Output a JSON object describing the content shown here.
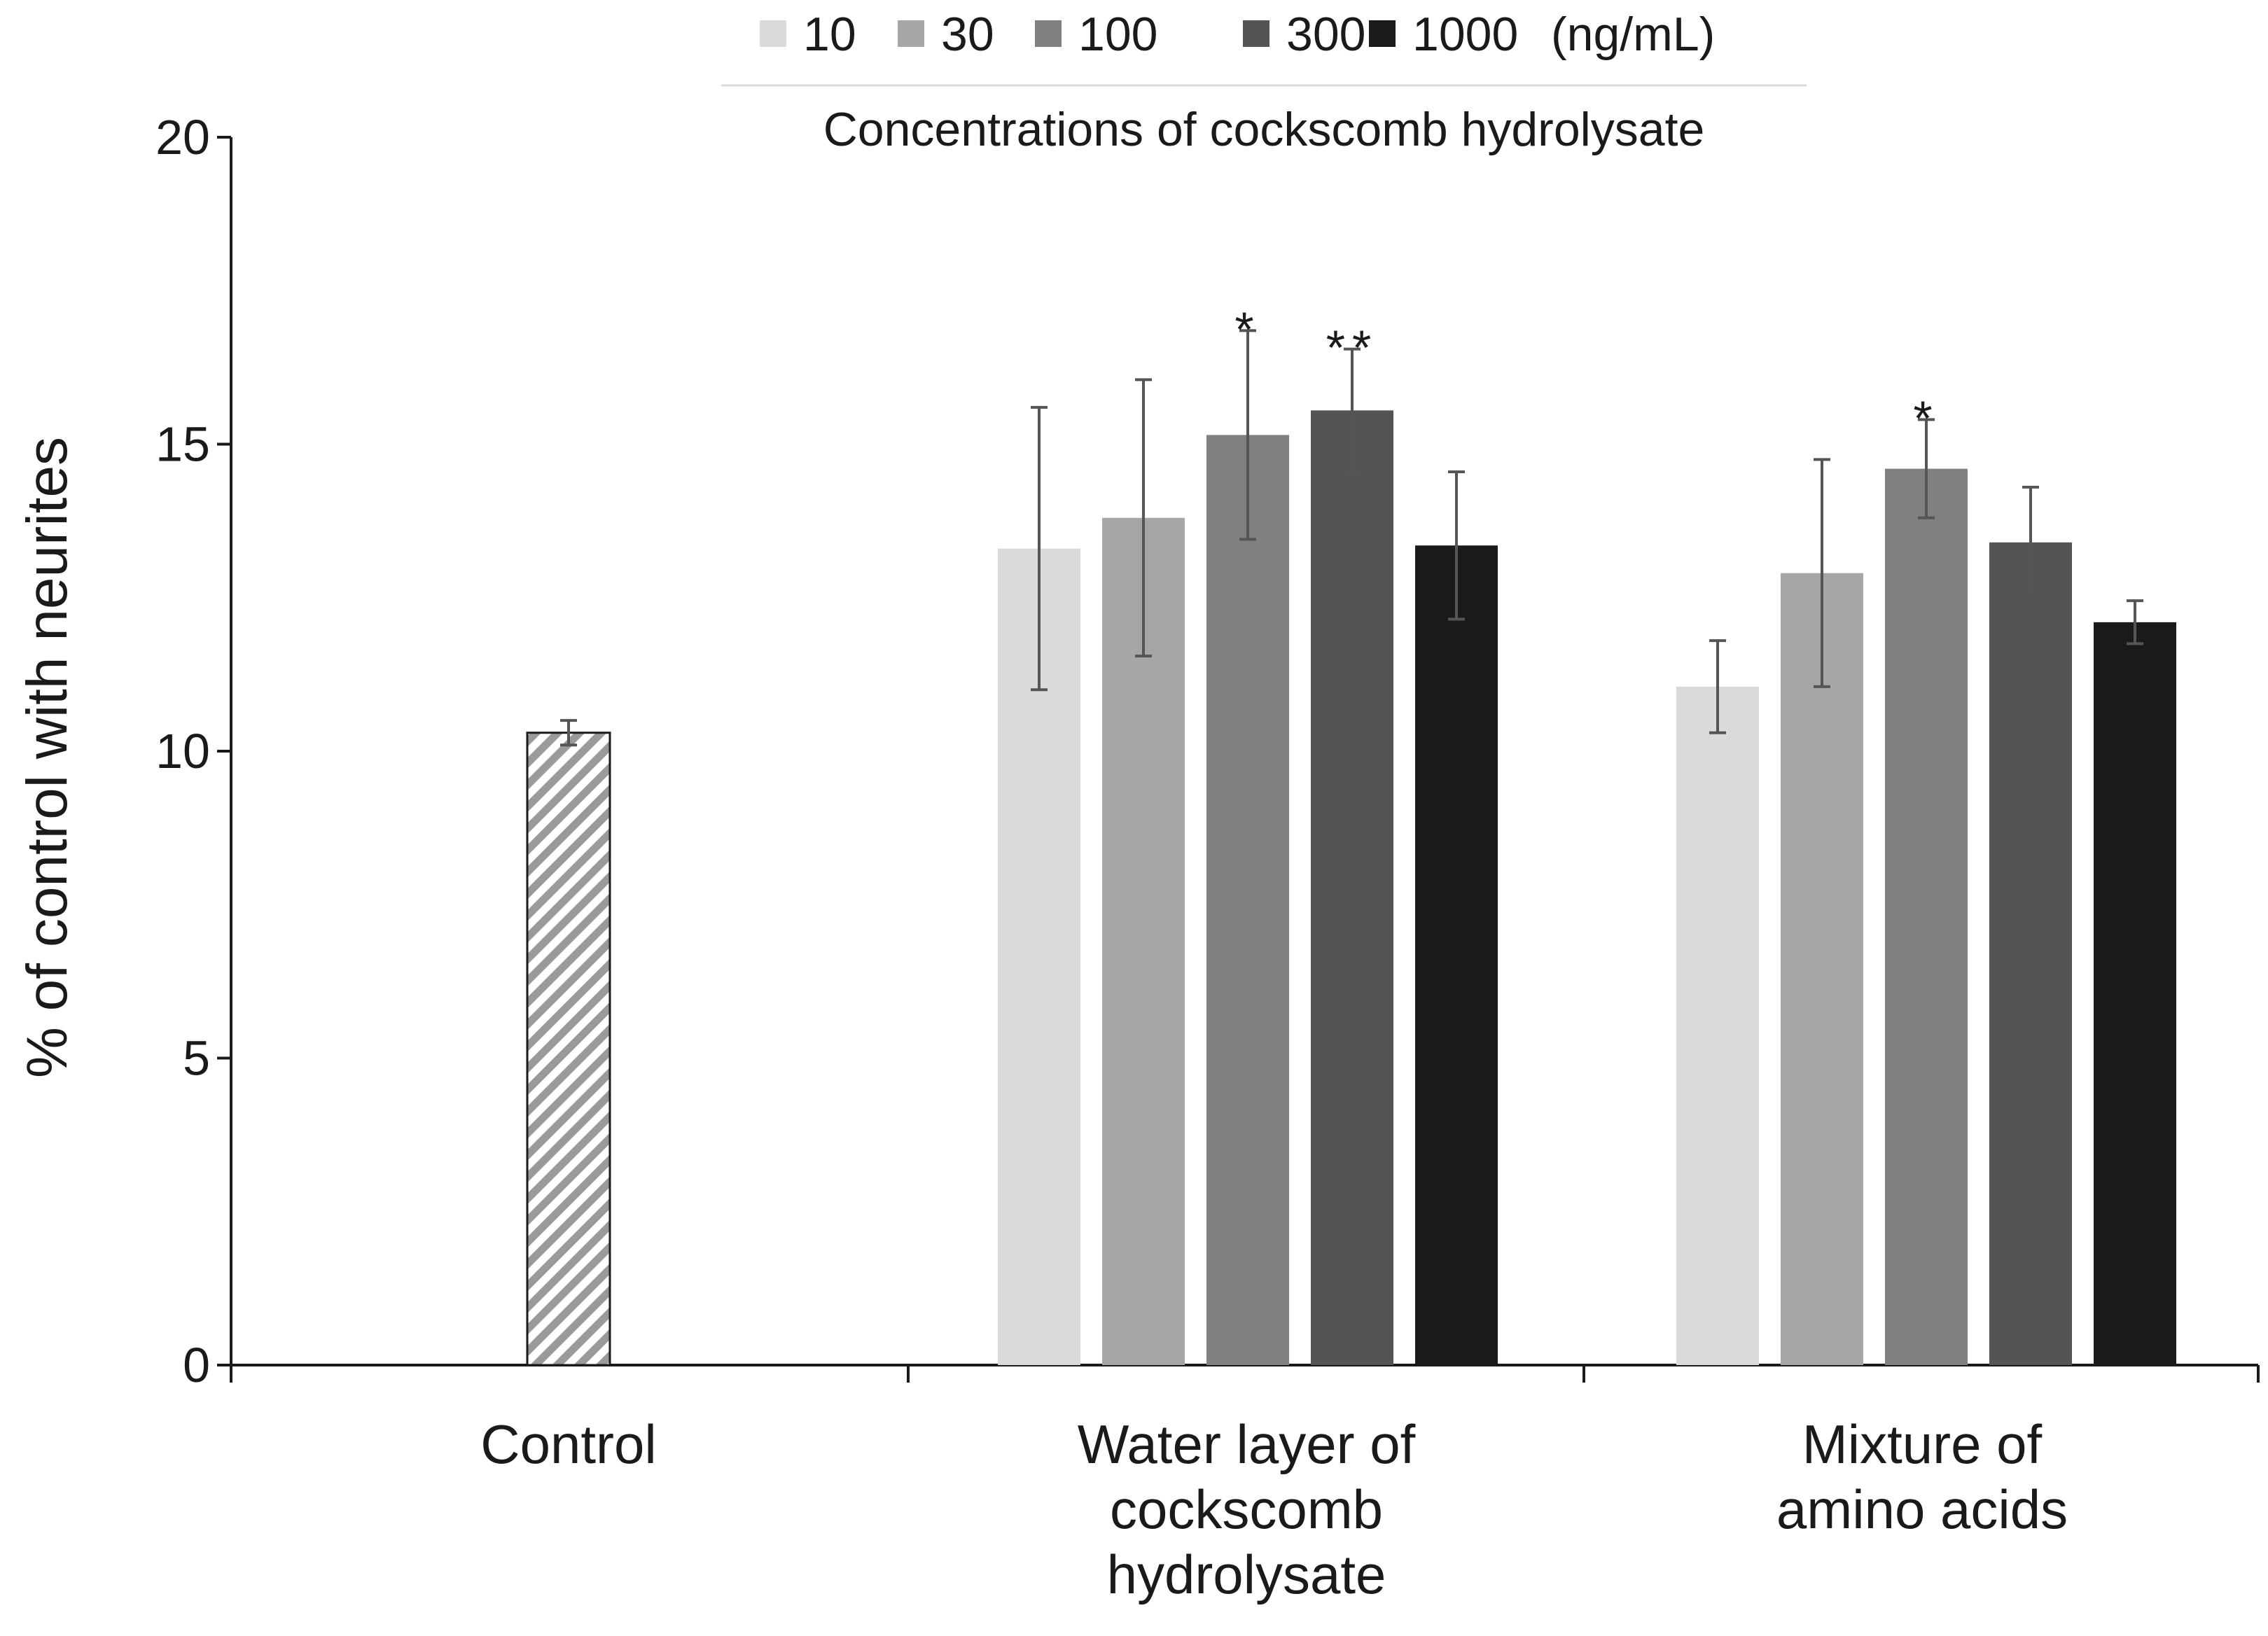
{
  "chart_data": {
    "type": "bar",
    "ylabel": "% of control with neurites",
    "xlabel": "",
    "ylim": [
      0,
      20
    ],
    "yticks": [
      0,
      5,
      10,
      15,
      20
    ],
    "legend": {
      "title": "Concentrations of cockscomb hydrolysate",
      "unit": "(ng/mL)",
      "placement": "top-center",
      "entries": [
        "10",
        "30",
        "100",
        "300",
        "1000"
      ],
      "colors": [
        "#dadada",
        "#a6a6a6",
        "#808080",
        "#545454",
        "#1a1a1a"
      ]
    },
    "control": {
      "name": "Control",
      "value": 10.3,
      "error": 0.2,
      "pattern": "diagonal-hatch"
    },
    "groups": [
      {
        "label_lines": [
          "Water layer of",
          "cockscomb",
          "hydrolysate"
        ],
        "values": [
          13.3,
          13.8,
          15.15,
          15.55,
          13.35
        ],
        "errors": [
          2.3,
          2.25,
          1.7,
          1.0,
          1.2
        ],
        "significance": [
          "",
          "",
          "*",
          "**",
          ""
        ]
      },
      {
        "label_lines": [
          "Mixture of",
          "amino acids"
        ],
        "values": [
          11.05,
          12.9,
          14.6,
          13.4,
          12.1
        ],
        "errors": [
          0.75,
          1.85,
          0.8,
          0.9,
          0.35
        ],
        "significance": [
          "",
          "",
          "*",
          "",
          ""
        ]
      }
    ]
  }
}
